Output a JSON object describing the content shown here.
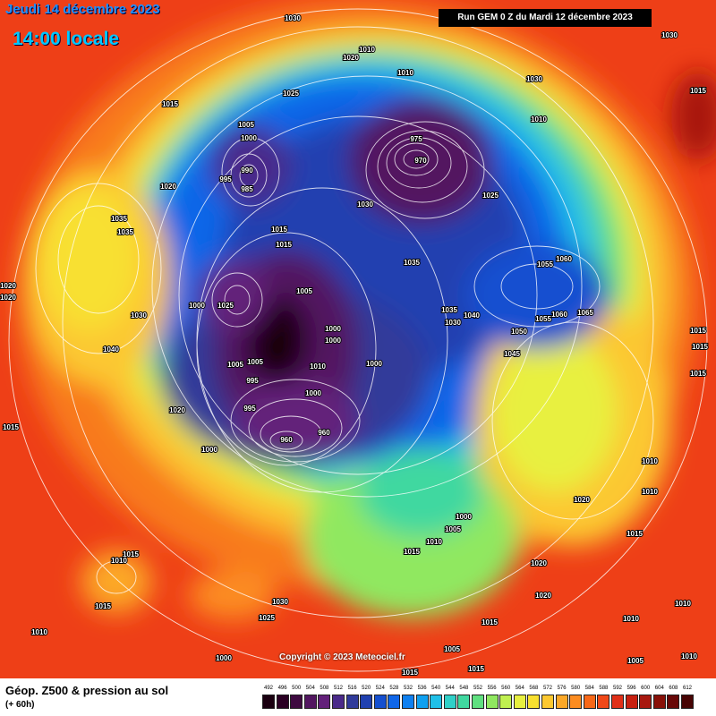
{
  "header": {
    "date_label": "Jeudi 14 décembre 2023",
    "time_label": "14:00 locale",
    "run_label": "Run GEM 0 Z du Mardi 12 décembre 2023"
  },
  "copyright": "Copyright © 2023 Meteociel.fr",
  "legend": {
    "title": "Géop. Z500 & pression au sol",
    "subtitle": "(+ 60h)",
    "ticks": [
      "492",
      "496",
      "500",
      "504",
      "508",
      "512",
      "516",
      "520",
      "524",
      "528",
      "532",
      "536",
      "540",
      "544",
      "548",
      "552",
      "556",
      "560",
      "564",
      "568",
      "572",
      "576",
      "580",
      "584",
      "588",
      "592",
      "596",
      "600",
      "604",
      "608",
      "612"
    ],
    "colors": [
      "#1a0010",
      "#2b0024",
      "#3e0a40",
      "#521660",
      "#63207a",
      "#4a2a8a",
      "#303a9a",
      "#2040b0",
      "#1550d0",
      "#1066e8",
      "#1080f0",
      "#10a0f0",
      "#20c0e8",
      "#30d0c8",
      "#40d8a0",
      "#60e080",
      "#90e860",
      "#c0f050",
      "#e8f040",
      "#f8e030",
      "#fcc830",
      "#fca828",
      "#fc8c20",
      "#f86818",
      "#f04818",
      "#e03018",
      "#c82010",
      "#a81810",
      "#881008",
      "#680808",
      "#480404"
    ]
  },
  "isobar_labels": [
    {
      "text": "1030"
    },
    {
      "text": "1010"
    },
    {
      "text": "1020"
    },
    {
      "text": "1010"
    },
    {
      "text": "1030"
    },
    {
      "text": "1025"
    },
    {
      "text": "1015"
    },
    {
      "text": "1005"
    },
    {
      "text": "1000"
    },
    {
      "text": "975"
    },
    {
      "text": "970"
    },
    {
      "text": "1030"
    },
    {
      "text": "1015"
    },
    {
      "text": "990"
    },
    {
      "text": "995"
    },
    {
      "text": "985"
    },
    {
      "text": "1020"
    },
    {
      "text": "1030"
    },
    {
      "text": "1025"
    },
    {
      "text": "1035"
    },
    {
      "text": "1035"
    },
    {
      "text": "1015"
    },
    {
      "text": "1015"
    },
    {
      "text": "1010"
    },
    {
      "text": "1035"
    },
    {
      "text": "1055"
    },
    {
      "text": "1060"
    },
    {
      "text": "1020"
    },
    {
      "text": "1020"
    },
    {
      "text": "1030"
    },
    {
      "text": "1000"
    },
    {
      "text": "1025"
    },
    {
      "text": "1005"
    },
    {
      "text": "1000"
    },
    {
      "text": "1000"
    },
    {
      "text": "1035"
    },
    {
      "text": "1030"
    },
    {
      "text": "1040"
    },
    {
      "text": "1050"
    },
    {
      "text": "1055"
    },
    {
      "text": "1060"
    },
    {
      "text": "1065"
    },
    {
      "text": "1015"
    },
    {
      "text": "1040"
    },
    {
      "text": "1005"
    },
    {
      "text": "1010"
    },
    {
      "text": "1000"
    },
    {
      "text": "1045"
    },
    {
      "text": "1015"
    },
    {
      "text": "1015"
    },
    {
      "text": "1005"
    },
    {
      "text": "995"
    },
    {
      "text": "995"
    },
    {
      "text": "1000"
    },
    {
      "text": "960"
    },
    {
      "text": "960"
    },
    {
      "text": "1020"
    },
    {
      "text": "1000"
    },
    {
      "text": "1015"
    },
    {
      "text": "1010"
    },
    {
      "text": "1020"
    },
    {
      "text": "1010"
    },
    {
      "text": "1000"
    },
    {
      "text": "1005"
    },
    {
      "text": "1010"
    },
    {
      "text": "1015"
    },
    {
      "text": "1015"
    },
    {
      "text": "1010"
    },
    {
      "text": "1015"
    },
    {
      "text": "1015"
    },
    {
      "text": "1030"
    },
    {
      "text": "1020"
    },
    {
      "text": "1025"
    },
    {
      "text": "1020"
    },
    {
      "text": "1010"
    },
    {
      "text": "1010"
    },
    {
      "text": "1010"
    },
    {
      "text": "1010"
    },
    {
      "text": "1005"
    },
    {
      "text": "1015"
    },
    {
      "text": "1015"
    },
    {
      "text": "1015"
    },
    {
      "text": "1005"
    },
    {
      "text": "1000"
    }
  ]
}
